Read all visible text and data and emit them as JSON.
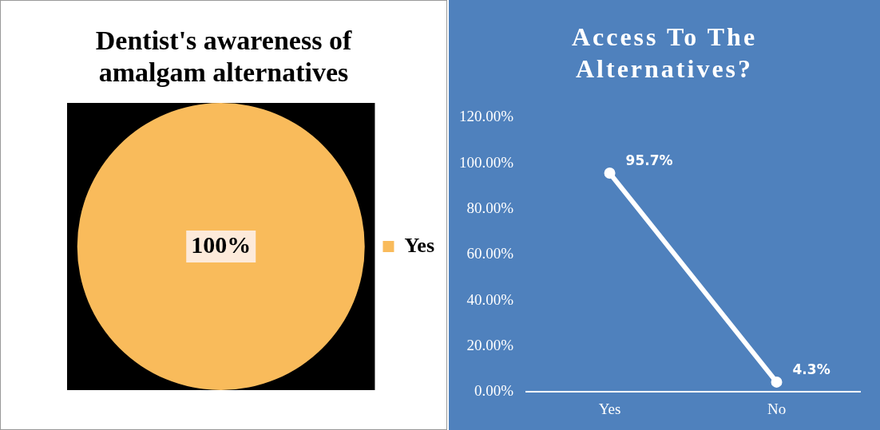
{
  "chart_data": [
    {
      "type": "pie",
      "title": "Dentist's awareness of amalgam alternatives",
      "categories": [
        "Yes"
      ],
      "values": [
        100
      ],
      "colors": [
        "#f9bb5b"
      ],
      "value_labels": [
        "100%"
      ],
      "legend": "right"
    },
    {
      "type": "line",
      "title": "Access To The Alternatives?",
      "categories": [
        "Yes",
        "No"
      ],
      "series": [
        {
          "color": "#ffffff",
          "values": [
            95.7,
            4.3
          ],
          "value_labels": [
            "95.7%",
            "4.3%"
          ]
        }
      ],
      "ylim": [
        0,
        120
      ],
      "yticks": [
        {
          "value": 0,
          "label": "0.00%"
        },
        {
          "value": 20,
          "label": "20.00%"
        },
        {
          "value": 40,
          "label": "40.00%"
        },
        {
          "value": 60,
          "label": "60.00%"
        },
        {
          "value": 80,
          "label": "80.00%"
        },
        {
          "value": 100,
          "label": "100.00%"
        },
        {
          "value": 120,
          "label": "120.00%"
        }
      ],
      "grid": false,
      "legend": false,
      "marker": "circle"
    }
  ]
}
